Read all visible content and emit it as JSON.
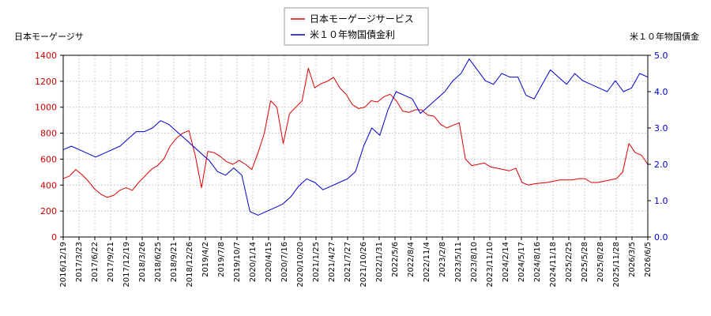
{
  "chart_data": {
    "type": "line",
    "left_axis_label": "日本モーゲージサ",
    "right_axis_label": "米１０年物国債金",
    "left_ylim": [
      0,
      1400
    ],
    "right_ylim": [
      0.0,
      5.0
    ],
    "left_ticks": [
      "0",
      "200",
      "400",
      "600",
      "800",
      "1000",
      "1200",
      "1400"
    ],
    "right_ticks": [
      "0.0",
      "1.0",
      "2.0",
      "3.0",
      "4.0",
      "5.0"
    ],
    "x_ticks": [
      "2016/12/19",
      "2017/3/23",
      "2017/6/22",
      "2017/9/21",
      "2017/12/19",
      "2018/3/26",
      "2018/6/25",
      "2018/9/21",
      "2018/12/26",
      "2019/4/2",
      "2019/7/8",
      "2019/10/7",
      "2020/1/14",
      "2020/4/15",
      "2020/7/16",
      "2020/10/20",
      "2021/1/25",
      "2021/4/27",
      "2021/7/27",
      "2021/10/26",
      "2022/1/31",
      "2022/5/6",
      "2022/8/4",
      "2022/11/4",
      "2023/2/8",
      "2023/5/11",
      "2023/8/10",
      "2023/11/10",
      "2024/2/14",
      "2024/5/17",
      "2024/8/16",
      "2024/11/18",
      "2025/2/25",
      "2025/5/28",
      "2025/8/28",
      "2025/11/28",
      "2026/3/5",
      "2026/6/5"
    ],
    "grid": true,
    "legend_position": "top-center",
    "series": [
      {
        "name": "日本モーゲージサービス",
        "axis": "left",
        "color": "#dd0000",
        "values": [
          450,
          470,
          520,
          480,
          430,
          370,
          330,
          305,
          320,
          360,
          380,
          360,
          420,
          470,
          520,
          550,
          600,
          700,
          760,
          800,
          820,
          630,
          380,
          660,
          650,
          620,
          580,
          560,
          590,
          560,
          520,
          650,
          800,
          1050,
          1000,
          720,
          950,
          1000,
          1050,
          1300,
          1150,
          1180,
          1200,
          1230,
          1150,
          1100,
          1020,
          990,
          1000,
          1050,
          1040,
          1080,
          1100,
          1050,
          970,
          960,
          980,
          980,
          940,
          930,
          870,
          840,
          860,
          880,
          600,
          550,
          560,
          570,
          540,
          530,
          520,
          510,
          530,
          420,
          400,
          410,
          415,
          420,
          430,
          440,
          440,
          440,
          450,
          450,
          420,
          420,
          430,
          440,
          450,
          500,
          720,
          650,
          630,
          560
        ]
      },
      {
        "name": "米１０年物国債金利",
        "axis": "right",
        "color": "#0000cc",
        "values": [
          2.4,
          2.5,
          2.4,
          2.3,
          2.2,
          2.3,
          2.4,
          2.5,
          2.7,
          2.9,
          2.9,
          3.0,
          3.2,
          3.1,
          2.9,
          2.7,
          2.5,
          2.3,
          2.1,
          1.8,
          1.7,
          1.9,
          1.7,
          0.7,
          0.6,
          0.7,
          0.8,
          0.9,
          1.1,
          1.4,
          1.6,
          1.5,
          1.3,
          1.4,
          1.5,
          1.6,
          1.8,
          2.5,
          3.0,
          2.8,
          3.5,
          4.0,
          3.9,
          3.8,
          3.4,
          3.6,
          3.8,
          4.0,
          4.3,
          4.5,
          4.9,
          4.6,
          4.3,
          4.2,
          4.5,
          4.4,
          4.4,
          3.9,
          3.8,
          4.2,
          4.6,
          4.4,
          4.2,
          4.5,
          4.3,
          4.2,
          4.1,
          4.0,
          4.3,
          4.0,
          4.1,
          4.5,
          4.4
        ]
      }
    ]
  }
}
